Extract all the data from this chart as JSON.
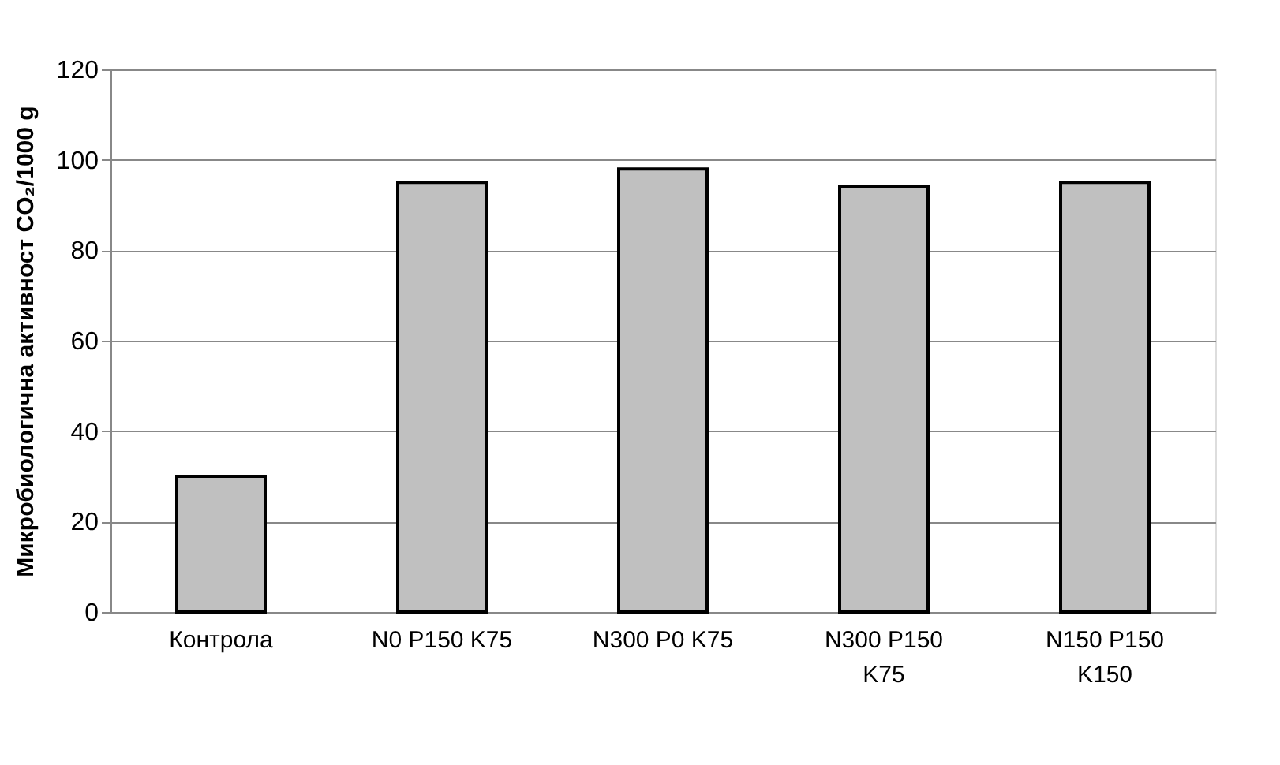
{
  "chart_data": {
    "type": "bar",
    "ylabel": "Микробиологична активност CO₂/1000 g",
    "categories": [
      "Контрола",
      "N0 P150 K75",
      "N300 P0 K75",
      "N300 P150 K75",
      "N150 P150 K150"
    ],
    "values": [
      30,
      95,
      98,
      94,
      95
    ],
    "color": "#c0c0c0",
    "ylim": [
      0,
      120
    ],
    "yticks": [
      0,
      20,
      40,
      60,
      80,
      100,
      120
    ],
    "grid": "y"
  }
}
